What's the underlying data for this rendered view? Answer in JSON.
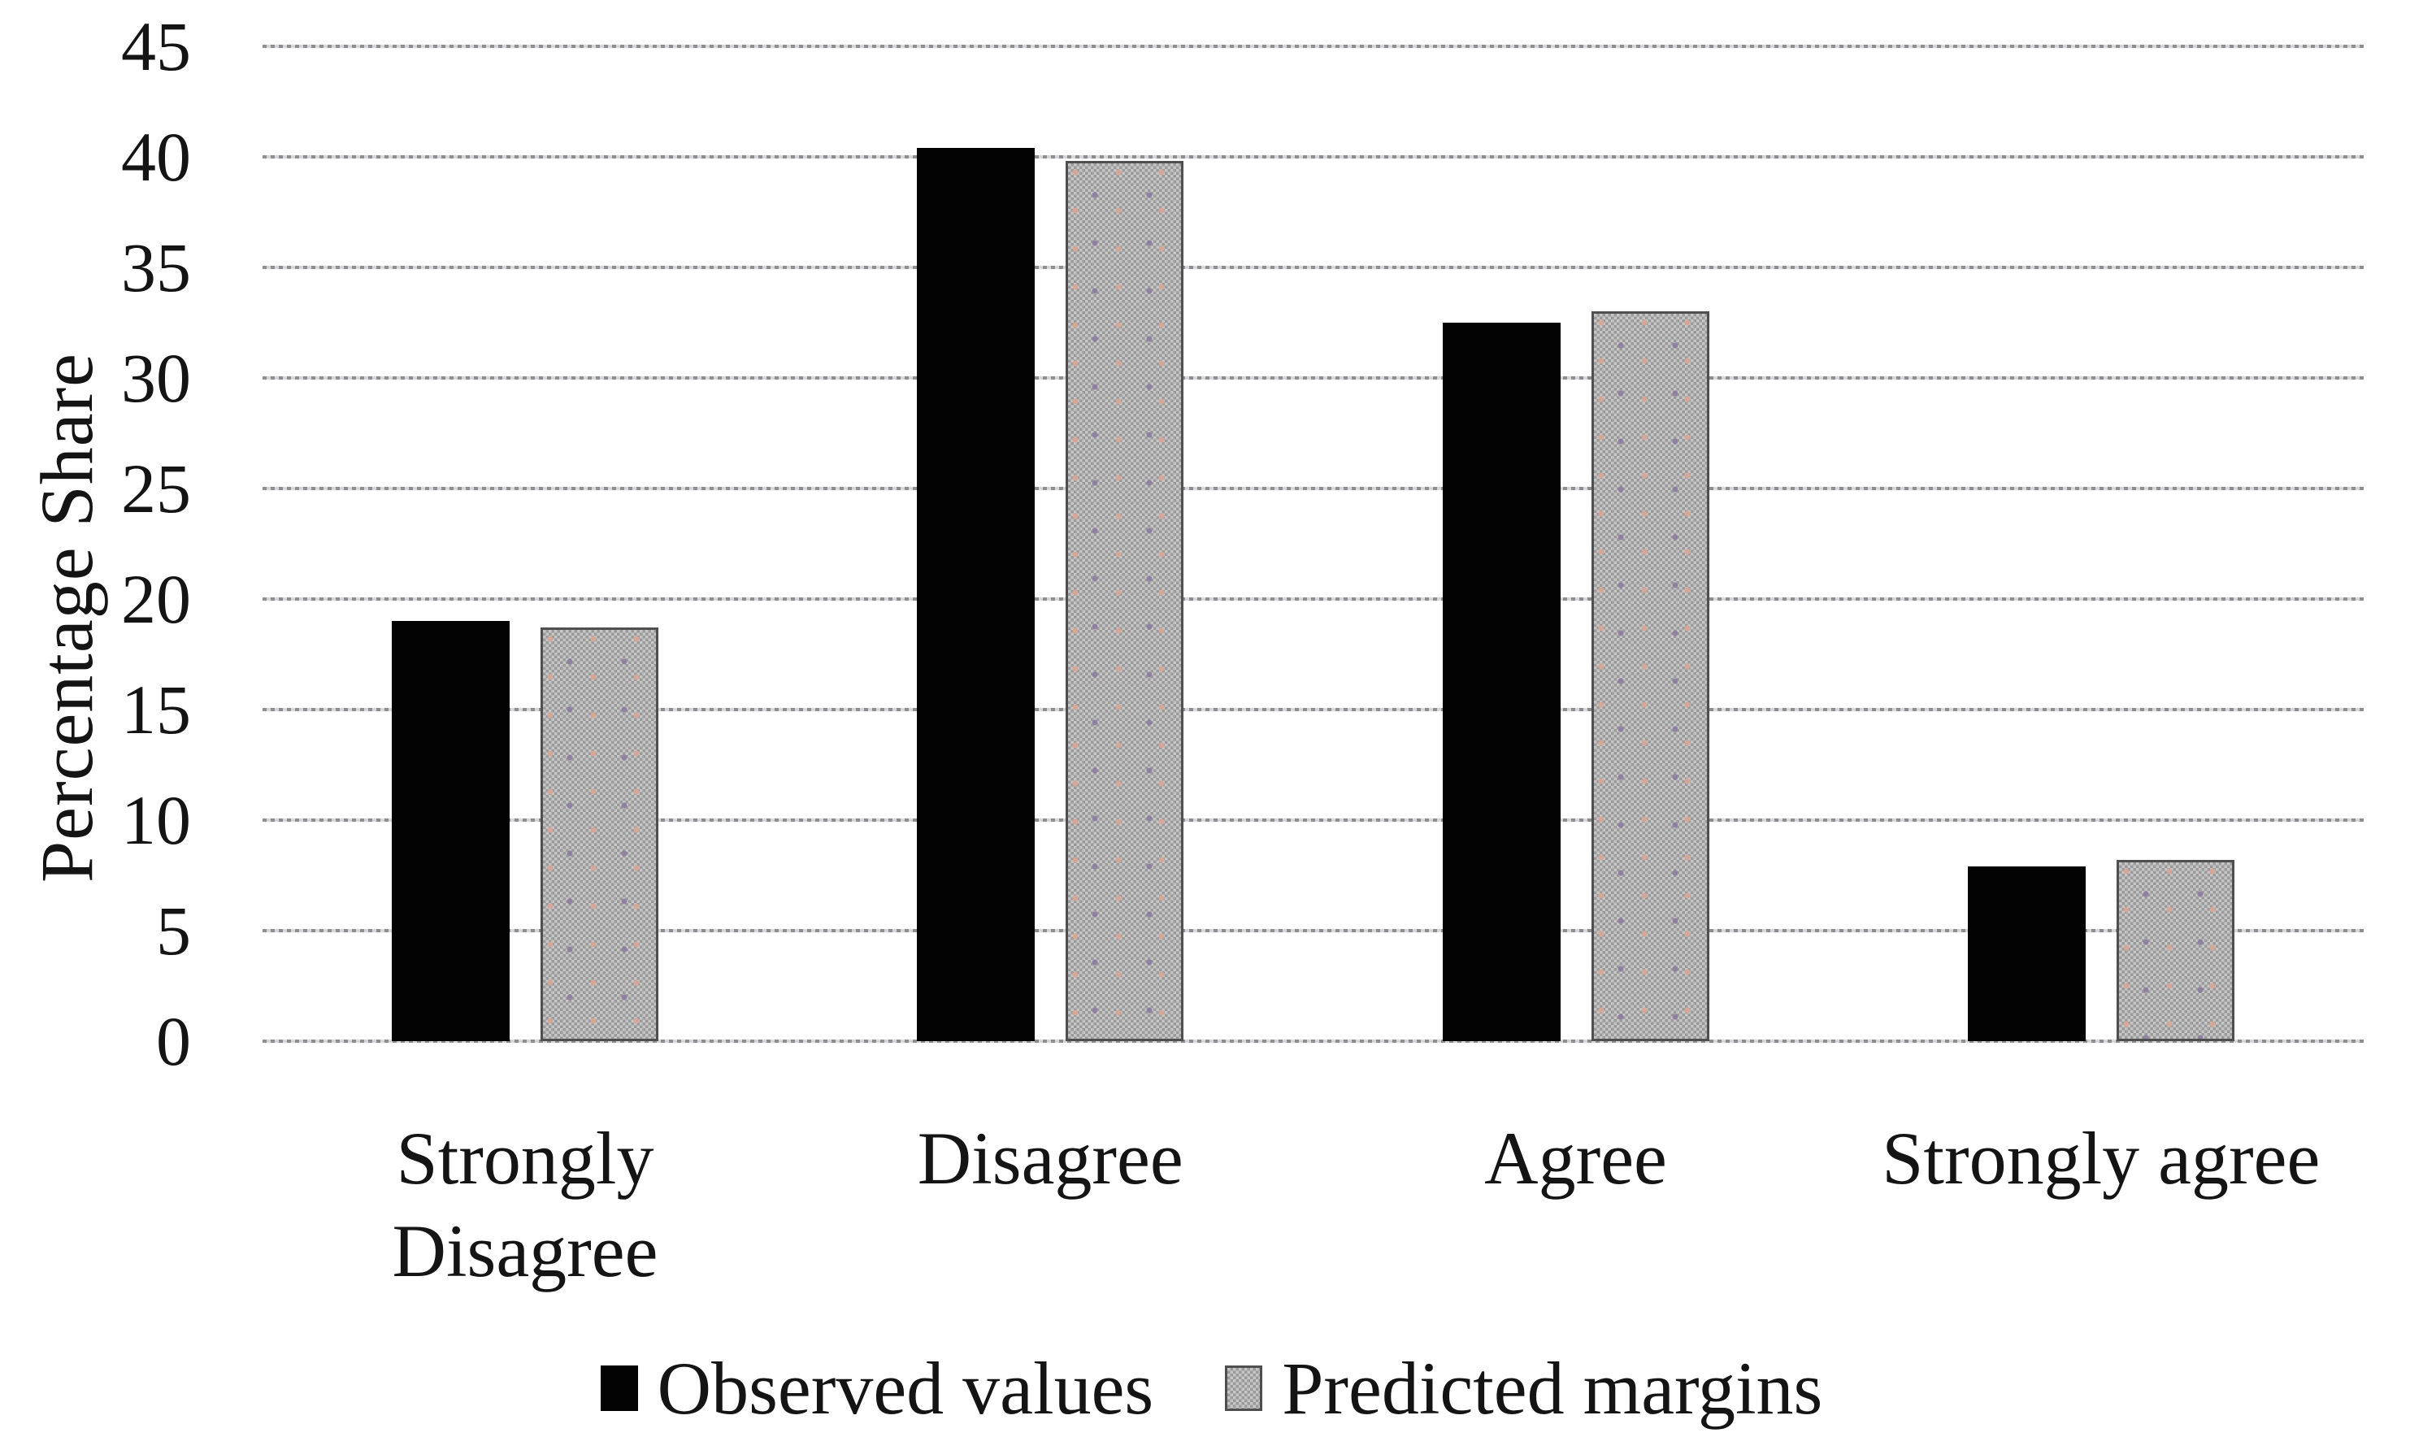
{
  "chart_data": {
    "type": "bar",
    "title": "",
    "xlabel": "",
    "ylabel": "Percentage Share",
    "categories": [
      "Strongly Disagree",
      "Disagree",
      "Agree",
      "Strongly agree"
    ],
    "category_lines": [
      [
        "Strongly",
        "Disagree"
      ],
      [
        "Disagree"
      ],
      [
        "Agree"
      ],
      [
        "Strongly agree"
      ]
    ],
    "series": [
      {
        "name": "Observed values",
        "style": "solid-black",
        "values": [
          19.0,
          40.4,
          32.5,
          7.9
        ]
      },
      {
        "name": "Predicted margins",
        "style": "textured-gray",
        "values": [
          18.7,
          39.8,
          33.0,
          8.2
        ]
      }
    ],
    "ylim": [
      0,
      45
    ],
    "ytick_step": 5,
    "yticks": [
      0,
      5,
      10,
      15,
      20,
      25,
      30,
      35,
      40,
      45
    ],
    "grid": "horizontal-dashed",
    "legend_position": "bottom"
  },
  "colors": {
    "background": "#ffffff",
    "text": "#141414",
    "observed_fill": "#030303",
    "predicted_fill_light": "#c6c6c6",
    "predicted_fill_dark": "#9a9a9a",
    "predicted_border": "#4f4f4f",
    "gridline_dark": "#8e8e8e",
    "gridline_light": "#d8d5db"
  }
}
